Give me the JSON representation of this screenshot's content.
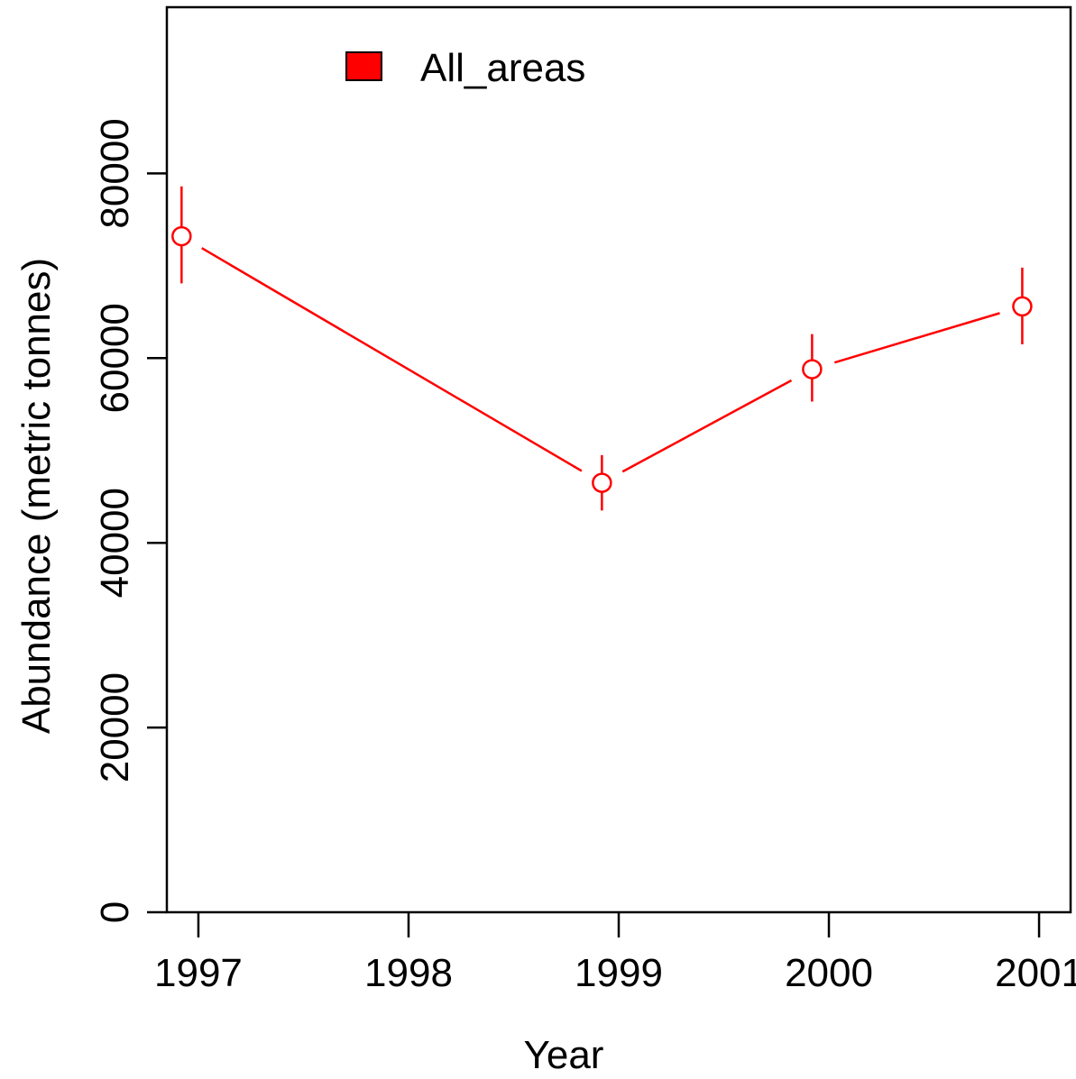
{
  "chart_data": {
    "type": "line",
    "xlabel": "Year",
    "ylabel": "Abundance (metric tonnes)",
    "xlim": [
      1996.85,
      2001.15
    ],
    "ylim": [
      0,
      98000
    ],
    "x_ticks": [
      1997,
      1998,
      1999,
      2000,
      2001
    ],
    "x_tick_labels": [
      "1997",
      "1998",
      "1999",
      "2000",
      "2001"
    ],
    "y_ticks": [
      0,
      20000,
      40000,
      60000,
      80000
    ],
    "y_tick_labels": [
      "0",
      "20000",
      "40000",
      "60000",
      "80000"
    ],
    "grid": false,
    "legend": {
      "position": "top-left",
      "entries": [
        "All_areas"
      ]
    },
    "series": [
      {
        "name": "All_areas",
        "color": "#ff0000",
        "x": [
          1996.92,
          1998.92,
          1999.92,
          2000.92
        ],
        "y": [
          73200,
          46500,
          58800,
          65600
        ],
        "err_low": [
          68100,
          43500,
          55300,
          61500
        ],
        "err_high": [
          78600,
          49500,
          62600,
          69800
        ]
      }
    ]
  }
}
